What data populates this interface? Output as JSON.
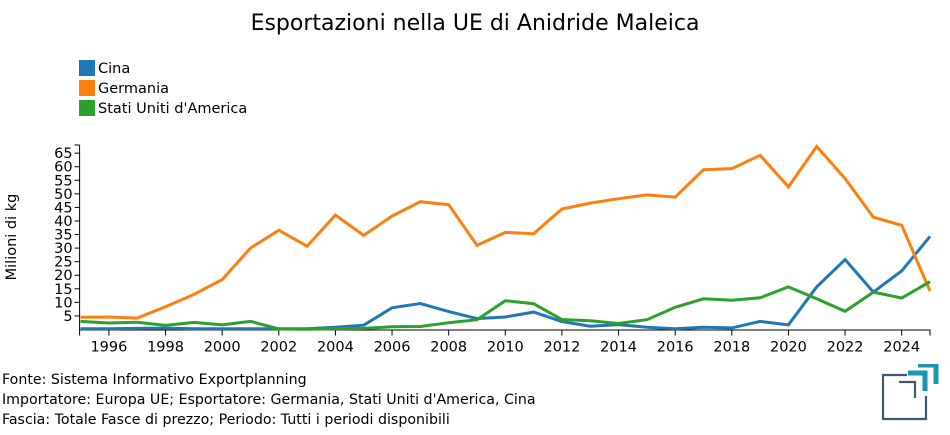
{
  "chart_data": {
    "type": "line",
    "title": "Esportazioni nella UE di Anidride Maleica",
    "xlabel": "",
    "ylabel": "Milioni di kg",
    "xlim": [
      1995,
      2025
    ],
    "ylim": [
      0,
      68
    ],
    "x_ticks": [
      1996,
      1998,
      2000,
      2002,
      2004,
      2006,
      2008,
      2010,
      2012,
      2014,
      2016,
      2018,
      2020,
      2022,
      2024
    ],
    "x_tick_labels": [
      "1996",
      "1998",
      "2000",
      "2002",
      "2004",
      "2006",
      "2008",
      "2010",
      "2012",
      "2014",
      "2016",
      "2018",
      "2020",
      "2022",
      "2024"
    ],
    "y_ticks": [
      5,
      10,
      15,
      20,
      25,
      30,
      35,
      40,
      45,
      50,
      55,
      60,
      65
    ],
    "y_tick_labels": [
      "5",
      "10",
      "15",
      "20",
      "25",
      "30",
      "35",
      "40",
      "45",
      "50",
      "55",
      "60",
      "65"
    ],
    "grid": false,
    "legend_position": "top-left",
    "x": [
      1995,
      1996,
      1997,
      1998,
      1999,
      2000,
      2001,
      2002,
      2003,
      2004,
      2005,
      2006,
      2007,
      2008,
      2009,
      2010,
      2011,
      2012,
      2013,
      2014,
      2015,
      2016,
      2017,
      2018,
      2019,
      2020,
      2021,
      2022,
      2023,
      2024,
      2025
    ],
    "series": [
      {
        "name": "Cina",
        "color": "#1f77b4",
        "values": [
          0.3,
          0.3,
          0.4,
          0.5,
          0.3,
          0.3,
          0.3,
          0.3,
          0.3,
          0.8,
          1.6,
          8.0,
          9.6,
          6.6,
          4.0,
          4.6,
          6.4,
          2.9,
          1.2,
          1.8,
          0.8,
          0.3,
          0.8,
          0.6,
          3.0,
          1.7,
          15.7,
          25.8,
          13.8,
          21.6,
          34.3
        ]
      },
      {
        "name": "Germania",
        "color": "#ff7f0e",
        "values": [
          4.5,
          4.6,
          4.2,
          8.4,
          12.9,
          18.4,
          30.0,
          36.6,
          30.7,
          42.2,
          34.7,
          41.8,
          47.1,
          46.0,
          31.0,
          35.8,
          35.3,
          44.4,
          46.6,
          48.2,
          49.6,
          48.8,
          58.9,
          59.3,
          64.2,
          52.6,
          67.5,
          55.6,
          41.4,
          38.4,
          14.2
        ]
      },
      {
        "name": "Stati Uniti d'America",
        "color": "#2ca02c",
        "values": [
          3.0,
          2.4,
          2.7,
          1.5,
          2.6,
          1.7,
          3.0,
          0.2,
          0.1,
          0.3,
          0.4,
          1.0,
          1.1,
          2.5,
          3.6,
          10.6,
          9.5,
          3.7,
          3.2,
          2.2,
          3.6,
          8.2,
          11.3,
          10.8,
          11.7,
          15.7,
          11.3,
          6.7,
          13.8,
          11.6,
          17.6
        ]
      }
    ]
  },
  "footer": {
    "line1": "Fonte: Sistema Informativo Exportplanning",
    "line2": "Importatore: Europa UE; Esportatore: Germania, Stati Uniti d'America, Cina",
    "line3": "Fascia: Totale Fasce di prezzo; Periodo: Tutti i periodi disponibili"
  },
  "logo": {
    "icon": "exportplanning-logo-icon",
    "frame_color": "#3d5a6c",
    "accent_color": "#1a94b0"
  }
}
